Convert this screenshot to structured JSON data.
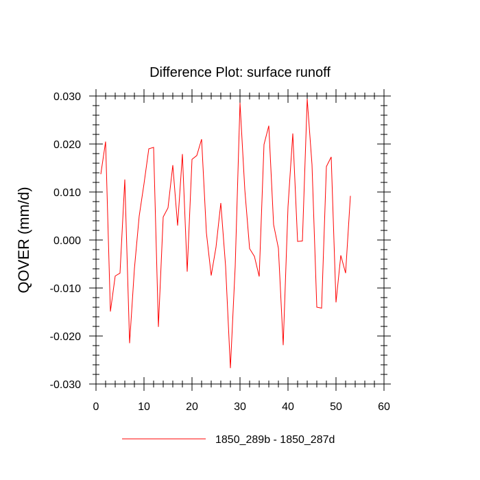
{
  "chart_data": {
    "type": "line",
    "title": "Difference Plot: surface runoff",
    "xlabel": "",
    "ylabel": "QOVER  (mm/d)",
    "xlim": [
      0,
      60
    ],
    "ylim": [
      -0.03,
      0.03
    ],
    "x_ticks": [
      0,
      10,
      20,
      30,
      40,
      50,
      60
    ],
    "x_tick_labels": [
      "0",
      "10",
      "20",
      "30",
      "40",
      "50",
      "60"
    ],
    "y_ticks": [
      -0.03,
      -0.02,
      -0.01,
      0.0,
      0.01,
      0.02,
      0.03
    ],
    "y_tick_labels": [
      "-0.030",
      "-0.020",
      "-0.010",
      "0.000",
      "0.010",
      "0.020",
      "0.030"
    ],
    "grid": false,
    "legend": {
      "position": "bottom-center"
    },
    "series": [
      {
        "name": "1850_289b - 1850_287d",
        "color": "#ff0000",
        "x": [
          1,
          2,
          3,
          4,
          5,
          6,
          7,
          8,
          9,
          10,
          11,
          12,
          13,
          14,
          15,
          16,
          17,
          18,
          19,
          20,
          21,
          22,
          23,
          24,
          25,
          26,
          27,
          28,
          29,
          30,
          31,
          32,
          33,
          34,
          35,
          36,
          37,
          38,
          39,
          40,
          41,
          42,
          43,
          44,
          45,
          46,
          47,
          48,
          49,
          50,
          51,
          52,
          53
        ],
        "y": [
          0.0137,
          0.0205,
          -0.0149,
          -0.0075,
          -0.0069,
          0.0126,
          -0.0215,
          -0.006,
          0.005,
          0.0117,
          0.019,
          0.0193,
          -0.0181,
          0.0048,
          0.0067,
          0.0156,
          0.003,
          0.0179,
          -0.0066,
          0.0168,
          0.0176,
          0.021,
          0.0015,
          -0.0074,
          -0.0015,
          0.0077,
          -0.0055,
          -0.0267,
          -0.0055,
          0.0286,
          0.0105,
          -0.0018,
          -0.0034,
          -0.0076,
          0.0199,
          0.0238,
          0.0032,
          -0.0017,
          -0.0219,
          0.0069,
          0.0222,
          -0.0003,
          -0.0002,
          0.0294,
          0.0157,
          -0.014,
          -0.0142,
          0.0153,
          0.0173,
          -0.013,
          -0.0032,
          -0.0069,
          0.0092
        ]
      }
    ]
  }
}
